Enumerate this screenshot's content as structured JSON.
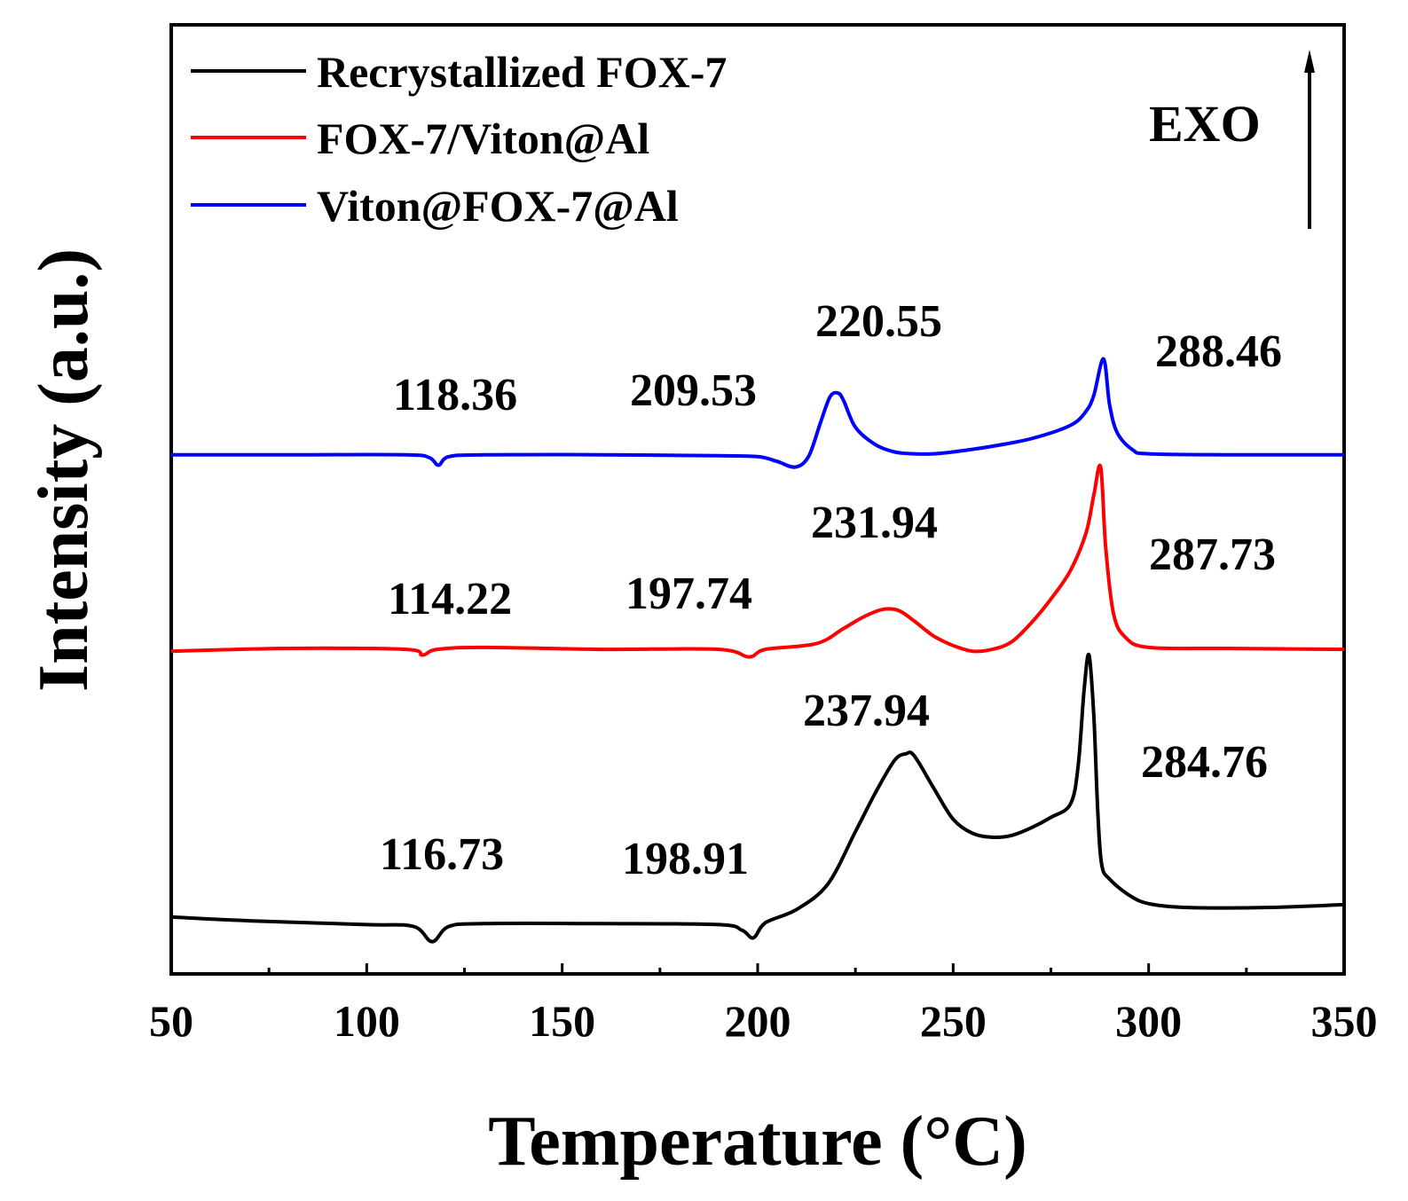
{
  "chart_data": {
    "type": "line",
    "title": "",
    "xlabel": "Temperature (°C)",
    "ylabel": "Intensity (a.u.)",
    "xlim": [
      50,
      350
    ],
    "ylim": [
      0,
      100
    ],
    "x_ticks": [
      50,
      100,
      150,
      200,
      250,
      300,
      350
    ],
    "x_tick_labels": [
      "50",
      "100",
      "150",
      "200",
      "250",
      "300",
      "350"
    ],
    "y_ticks_shown": false,
    "grid": false,
    "legend_position": "top-left",
    "exo_label": "EXO",
    "exo_direction": "up",
    "series": [
      {
        "name": "Recrystallized FOX-7",
        "color": "#000000",
        "x": [
          50,
          70,
          100,
          112,
          116.73,
          121,
          130,
          160,
          190,
          196,
          198.91,
          202,
          210,
          218,
          225,
          230,
          235,
          237.94,
          240,
          245,
          250,
          255,
          260,
          265,
          270,
          275,
          280,
          282,
          283.5,
          284.76,
          286,
          287,
          288,
          290,
          295,
          300,
          310,
          330,
          350
        ],
        "values": [
          6.0,
          5.6,
          5.2,
          5.0,
          3.4,
          5.0,
          5.3,
          5.3,
          5.2,
          4.6,
          3.8,
          5.4,
          6.8,
          9.5,
          15.0,
          19.0,
          22.5,
          23.2,
          23.0,
          19.6,
          16.3,
          14.8,
          14.4,
          14.6,
          15.4,
          16.5,
          17.9,
          22.0,
          30.0,
          33.6,
          27.0,
          17.0,
          11.5,
          10.0,
          8.3,
          7.4,
          7.0,
          7.0,
          7.3
        ]
      },
      {
        "name": "FOX-7/Viton@Al",
        "color": "#ff0000",
        "x": [
          50,
          80,
          110,
          114.22,
          118,
          130,
          160,
          190,
          197.74,
          202,
          215,
          222,
          227,
          231.94,
          236,
          240,
          245,
          250,
          255,
          260,
          265,
          270,
          275,
          280,
          284,
          286,
          287.73,
          289,
          291,
          294,
          300,
          320,
          350
        ],
        "values": [
          34.0,
          34.3,
          34.2,
          33.6,
          34.2,
          34.4,
          34.2,
          34.2,
          33.4,
          34.2,
          34.8,
          36.4,
          37.6,
          38.4,
          38.3,
          37.2,
          35.6,
          34.6,
          34.0,
          34.2,
          35.0,
          37.0,
          39.5,
          42.5,
          46.5,
          50.5,
          53.4,
          45.0,
          38.0,
          35.5,
          34.4,
          34.3,
          34.2
        ]
      },
      {
        "name": "Viton@FOX-7@Al",
        "color": "#0000ff",
        "x": [
          50,
          80,
          110,
          116,
          118.36,
          121,
          130,
          160,
          190,
          200,
          205,
          209.53,
          213,
          216,
          218.5,
          220.55,
          222,
          225,
          230,
          235,
          240,
          245,
          250,
          260,
          270,
          280,
          284,
          286,
          288.46,
          290,
          292,
          296,
          300,
          320,
          350
        ],
        "values": [
          54.7,
          54.7,
          54.7,
          54.4,
          53.6,
          54.5,
          54.7,
          54.7,
          54.6,
          54.5,
          54.0,
          53.4,
          54.5,
          58.0,
          60.8,
          61.2,
          60.4,
          57.6,
          55.8,
          55.0,
          54.8,
          54.8,
          55.0,
          55.6,
          56.4,
          57.8,
          59.3,
          61.0,
          64.8,
          60.0,
          57.0,
          55.2,
          54.8,
          54.7,
          54.7
        ]
      }
    ],
    "annotations": [
      {
        "text": "118.36",
        "series": "Viton@FOX-7@Al"
      },
      {
        "text": "209.53",
        "series": "Viton@FOX-7@Al"
      },
      {
        "text": "220.55",
        "series": "Viton@FOX-7@Al"
      },
      {
        "text": "288.46",
        "series": "Viton@FOX-7@Al"
      },
      {
        "text": "114.22",
        "series": "FOX-7/Viton@Al"
      },
      {
        "text": "197.74",
        "series": "FOX-7/Viton@Al"
      },
      {
        "text": "231.94",
        "series": "FOX-7/Viton@Al"
      },
      {
        "text": "287.73",
        "series": "FOX-7/Viton@Al"
      },
      {
        "text": "116.73",
        "series": "Recrystallized FOX-7"
      },
      {
        "text": "198.91",
        "series": "Recrystallized FOX-7"
      },
      {
        "text": "237.94",
        "series": "Recrystallized FOX-7"
      },
      {
        "text": "284.76",
        "series": "Recrystallized FOX-7"
      }
    ]
  }
}
